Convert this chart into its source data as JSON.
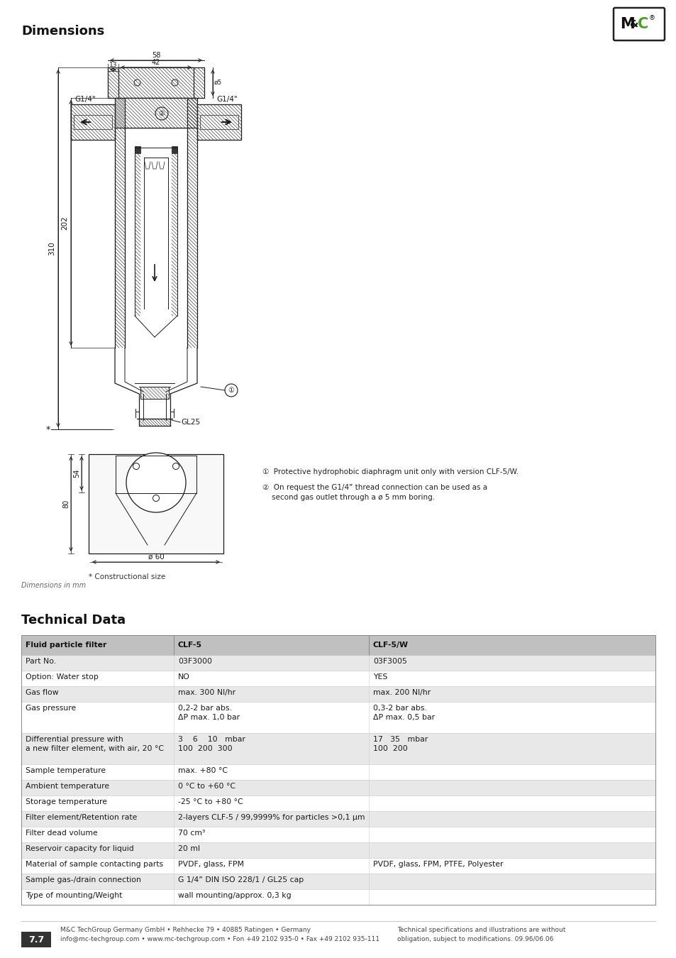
{
  "title_dimensions": "Dimensions",
  "title_technical": "Technical Data",
  "table_header": [
    "Fluid particle filter",
    "CLF-5",
    "CLF-5/W"
  ],
  "table_rows": [
    [
      "Part No.",
      "03F3000",
      "03F3005"
    ],
    [
      "Option: Water stop",
      "NO",
      "YES"
    ],
    [
      "Gas flow",
      "max. 300 Nl/hr",
      "max. 200 Nl/hr"
    ],
    [
      "Gas pressure",
      "0,2-2 bar abs.\nΔP max. 1,0 bar",
      "0,3-2 bar abs.\nΔP max. 0,5 bar"
    ],
    [
      "Differential pressure with\na new filter element, with air, 20 °C",
      "3    6    10   mbar\n100  200  300",
      "17   35   mbar\n100  200"
    ],
    [
      "Sample temperature",
      "max. +80 °C",
      ""
    ],
    [
      "Ambient temperature",
      "0 °C to +60 °C",
      ""
    ],
    [
      "Storage temperature",
      "-25 °C to +80 °C",
      ""
    ],
    [
      "Filter element/Retention rate",
      "2-layers CLF-5 / 99,9999% for particles >0,1 μm",
      ""
    ],
    [
      "Filter dead volume",
      "70 cm³",
      ""
    ],
    [
      "Reservoir capacity for liquid",
      "20 ml",
      ""
    ],
    [
      "Material of sample contacting parts",
      "PVDF, glass, FPM",
      "PVDF, glass, FPM, PTFE, Polyester"
    ],
    [
      "Sample gas-/drain connection",
      "G 1/4” DIN ISO 228/1 / GL25 cap",
      ""
    ],
    [
      "Type of mounting/Weight",
      "wall mounting/approx. 0,3 kg",
      ""
    ]
  ],
  "footer_left": "M&C TechGroup Germany GmbH • Rehhecke 79 • 40885 Ratingen • Germany\ninfo@mc-techgroup.com • www.mc-techgroup.com • Fon +49 2102 935-0 • Fax +49 2102 935-111",
  "footer_right": "Technical specifications and illustrations are without\nobligation, subject to modifications. 09.96/06.06",
  "footer_page": "7.7",
  "note1": "①  Protective hydrophobic diaphragm unit only with version CLF-5/W.",
  "note2": "②  On request the G1/4” thread connection can be used as a\n    second gas outlet through a ø 5 mm boring.",
  "constr_size": "* Constructional size",
  "dim_mm": "Dimensions in mm",
  "bg_color": "#ffffff",
  "header_bg": "#cccccc",
  "row_alt_bg": "#e8e8e8",
  "row_white": "#ffffff",
  "green_color": "#4a9e2a"
}
